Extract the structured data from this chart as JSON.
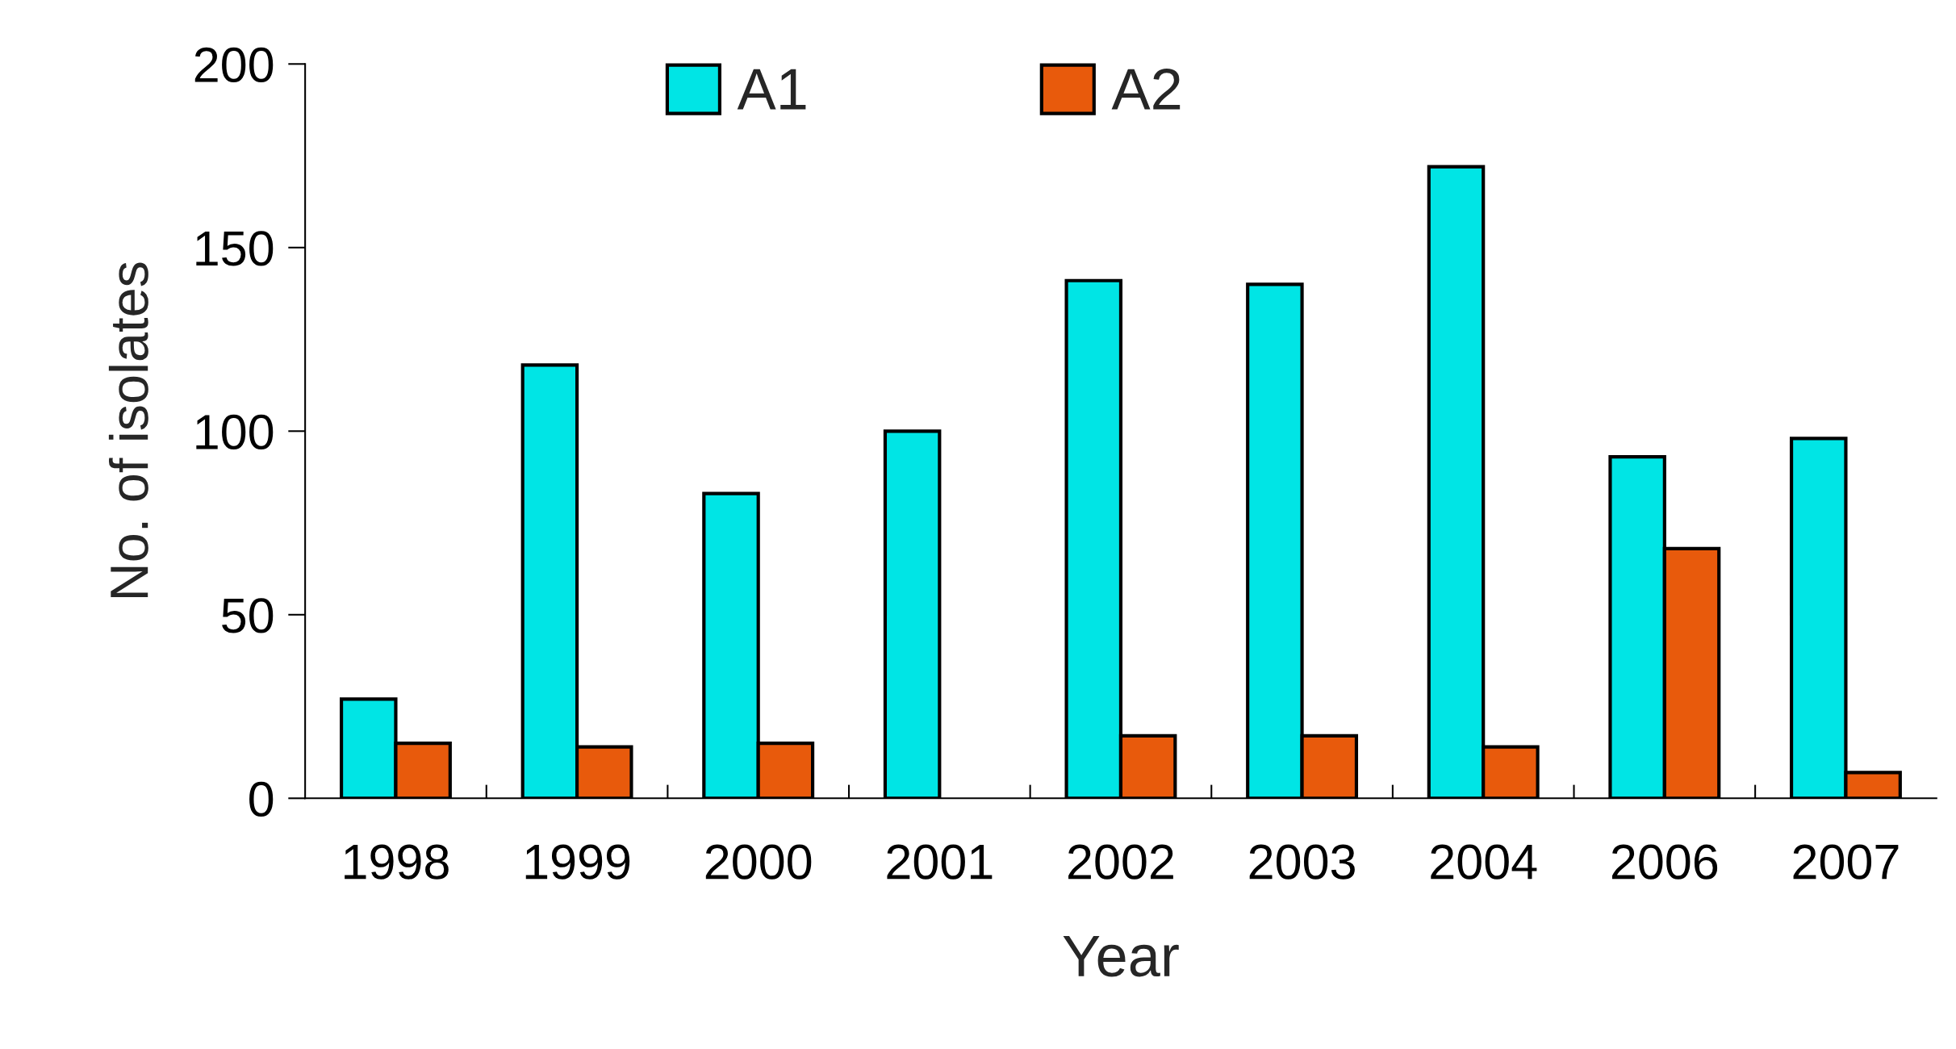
{
  "chart_data": {
    "type": "bar",
    "xlabel": "Year",
    "ylabel": "No. of isolates",
    "categories": [
      "1998",
      "1999",
      "2000",
      "2001",
      "2002",
      "2003",
      "2004",
      "2006",
      "2007"
    ],
    "series": [
      {
        "name": "A1",
        "color": "#00e5e5",
        "values": [
          27,
          118,
          83,
          100,
          141,
          140,
          172,
          93,
          98
        ]
      },
      {
        "name": "A2",
        "color": "#e85a0c",
        "values": [
          15,
          14,
          15,
          null,
          17,
          17,
          14,
          68,
          7
        ]
      }
    ],
    "ylim": [
      0,
      200
    ],
    "yticks": [
      0,
      50,
      100,
      150,
      200
    ],
    "grid": false,
    "legend": "top"
  }
}
